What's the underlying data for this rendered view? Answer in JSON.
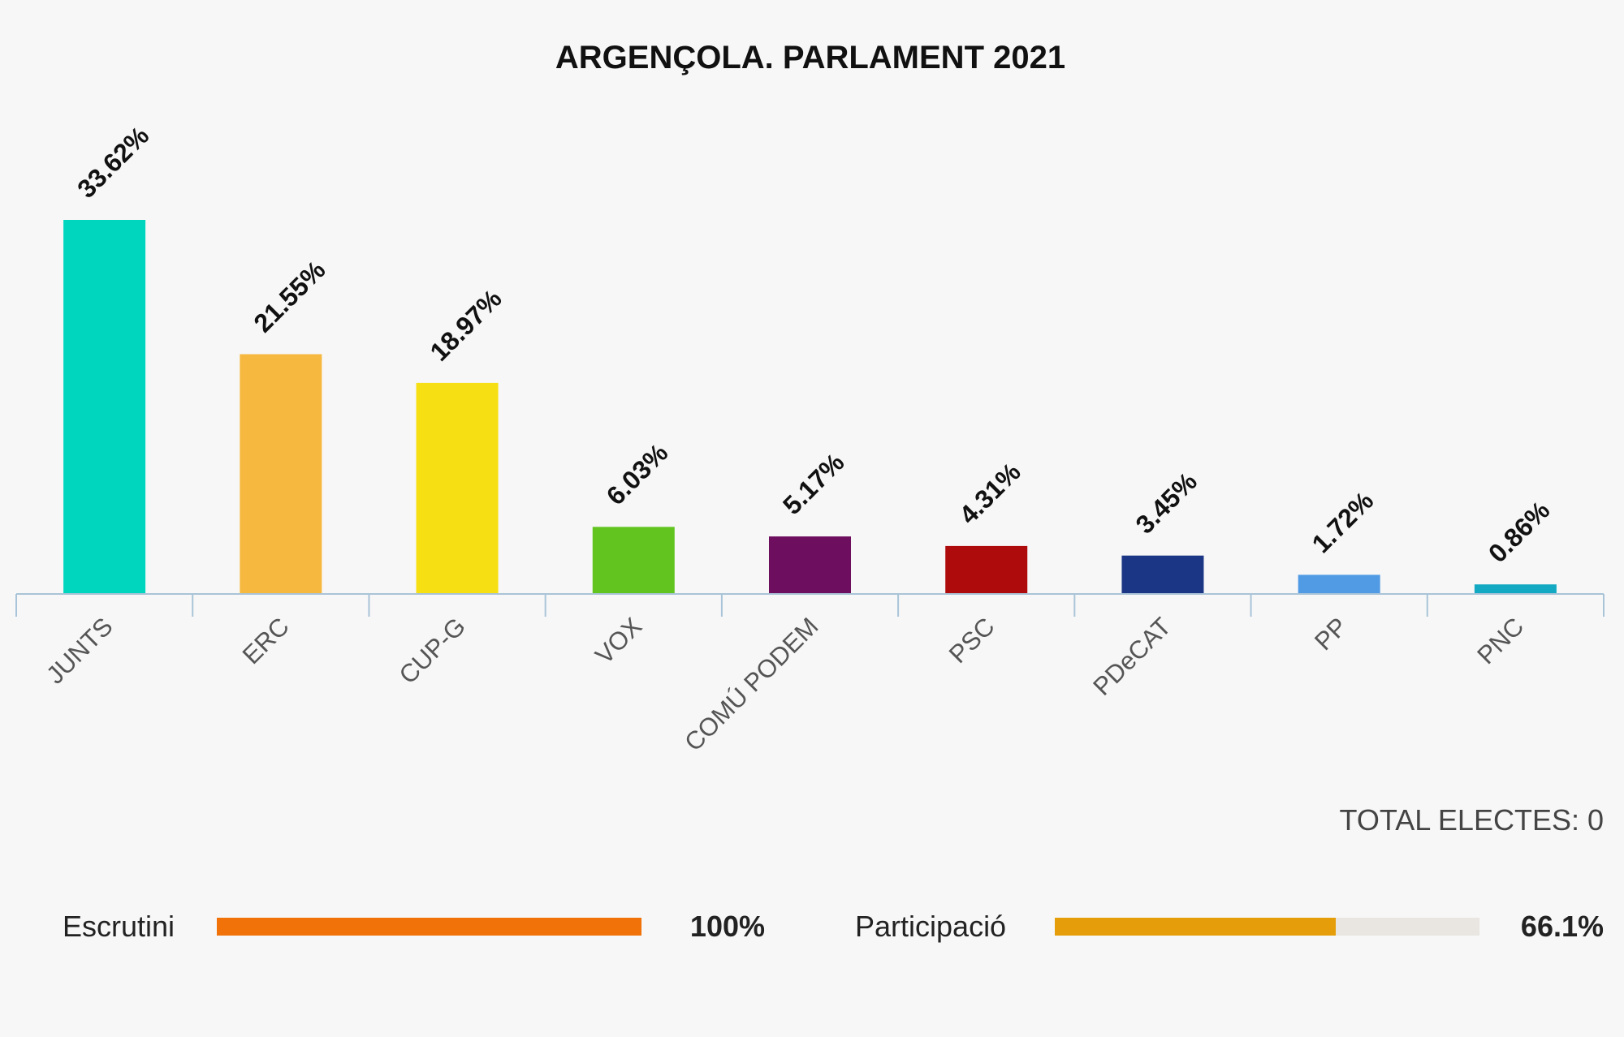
{
  "chart_data": {
    "type": "bar",
    "title": "ARGENÇOLA. PARLAMENT 2021",
    "categories": [
      "JUNTS",
      "ERC",
      "CUP-G",
      "VOX",
      "COMÚ PODEM",
      "PSC",
      "PDeCAT",
      "PP",
      "PNC"
    ],
    "values": [
      33.62,
      21.55,
      18.97,
      6.03,
      5.17,
      4.31,
      3.45,
      1.72,
      0.86
    ],
    "value_labels": [
      "33.62%",
      "21.55%",
      "18.97%",
      "6.03%",
      "5.17%",
      "4.31%",
      "3.45%",
      "1.72%",
      "0.86%"
    ],
    "colors": [
      "#00d6be",
      "#f7b840",
      "#f6df12",
      "#62c41f",
      "#6d0e5e",
      "#ae0c0c",
      "#1c3686",
      "#519be4",
      "#14a9c2"
    ],
    "ylim": [
      0,
      33.62
    ],
    "xlabel": "",
    "ylabel": "",
    "grid": false,
    "axis_color": "#a9c4d8"
  },
  "summary": {
    "total_electes": "TOTAL ELECTES: 0"
  },
  "progress": {
    "escrutini": {
      "label": "Escrutini",
      "value_text": "100%",
      "value": 100,
      "color": "#f17209"
    },
    "participacio": {
      "label": "Participació",
      "value_text": "66.1%",
      "value": 66.1,
      "color": "#e59e0a"
    }
  }
}
